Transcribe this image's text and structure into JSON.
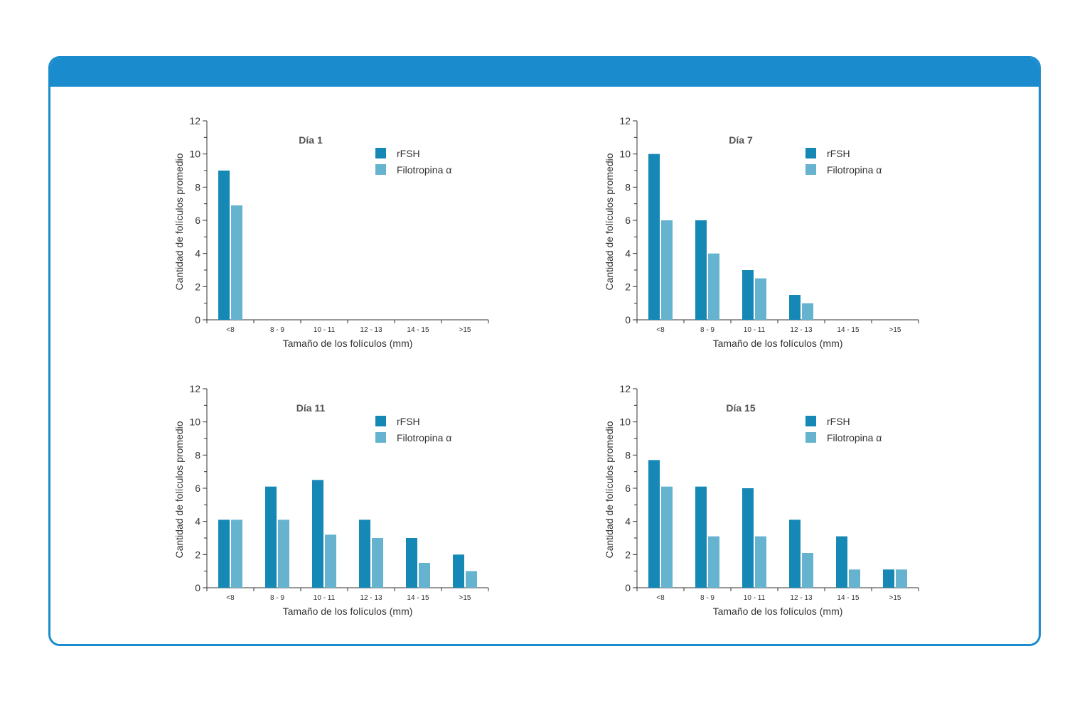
{
  "colors": {
    "frame": "#1a8ccd",
    "axis": "#333333"
  },
  "chart_data": [
    {
      "type": "bar",
      "title": "Día 1",
      "xlabel": "Tamaño de los folículos (mm)",
      "ylabel": "Cantidad de folículos promedio",
      "categories": [
        "<8",
        "8 - 9",
        "10 - 11",
        "12 - 13",
        "14 - 15",
        ">15"
      ],
      "ylim": [
        0,
        12
      ],
      "yticks": [
        "0",
        "2",
        "4",
        "6",
        "8",
        "10",
        "12"
      ],
      "legend_position": "top-right",
      "series": [
        {
          "name": "rFSH",
          "color": "#1688b5",
          "values": [
            9,
            0,
            0,
            0,
            0,
            0
          ]
        },
        {
          "name": "Filotropina α",
          "color": "#66b3cf",
          "values": [
            6.9,
            0,
            0,
            0,
            0,
            0
          ]
        }
      ]
    },
    {
      "type": "bar",
      "title": "Día 7",
      "xlabel": "Tamaño de los folículos (mm)",
      "ylabel": "Cantidad de folículos promedio",
      "categories": [
        "<8",
        "8 - 9",
        "10 - 11",
        "12 - 13",
        "14 - 15",
        ">15"
      ],
      "ylim": [
        0,
        12
      ],
      "yticks": [
        "0",
        "2",
        "4",
        "6",
        "8",
        "10",
        "12"
      ],
      "legend_position": "top-right",
      "series": [
        {
          "name": "rFSH",
          "color": "#1688b5",
          "values": [
            10,
            6,
            3,
            1.5,
            0,
            0
          ]
        },
        {
          "name": "Filotropina α",
          "color": "#66b3cf",
          "values": [
            6,
            4,
            2.5,
            1,
            0,
            0
          ]
        }
      ]
    },
    {
      "type": "bar",
      "title": "Día 11",
      "xlabel": "Tamaño de los folículos (mm)",
      "ylabel": "Cantidad de folículos promedio",
      "categories": [
        "<8",
        "8 - 9",
        "10 - 11",
        "12 - 13",
        "14 - 15",
        ">15"
      ],
      "ylim": [
        0,
        12
      ],
      "yticks": [
        "0",
        "2",
        "4",
        "6",
        "8",
        "10",
        "12"
      ],
      "legend_position": "top-right",
      "series": [
        {
          "name": "rFSH",
          "color": "#1688b5",
          "values": [
            4.1,
            6.1,
            6.5,
            4.1,
            3,
            2
          ]
        },
        {
          "name": "Filotropina α",
          "color": "#66b3cf",
          "values": [
            4.1,
            4.1,
            3.2,
            3,
            1.5,
            1
          ]
        }
      ]
    },
    {
      "type": "bar",
      "title": "Día 15",
      "xlabel": "Tamaño de los folículos (mm)",
      "ylabel": "Cantidad de folículos promedio",
      "categories": [
        "<8",
        "8 - 9",
        "10 - 11",
        "12 - 13",
        "14 - 15",
        ">15"
      ],
      "ylim": [
        0,
        12
      ],
      "yticks": [
        "0",
        "2",
        "4",
        "6",
        "8",
        "10",
        "12"
      ],
      "legend_position": "top-right",
      "series": [
        {
          "name": "rFSH",
          "color": "#1688b5",
          "values": [
            7.7,
            6.1,
            6,
            4.1,
            3.1,
            1.1
          ]
        },
        {
          "name": "Filotropina α",
          "color": "#66b3cf",
          "values": [
            6.1,
            3.1,
            3.1,
            2.1,
            1.1,
            1.1
          ]
        }
      ]
    }
  ]
}
